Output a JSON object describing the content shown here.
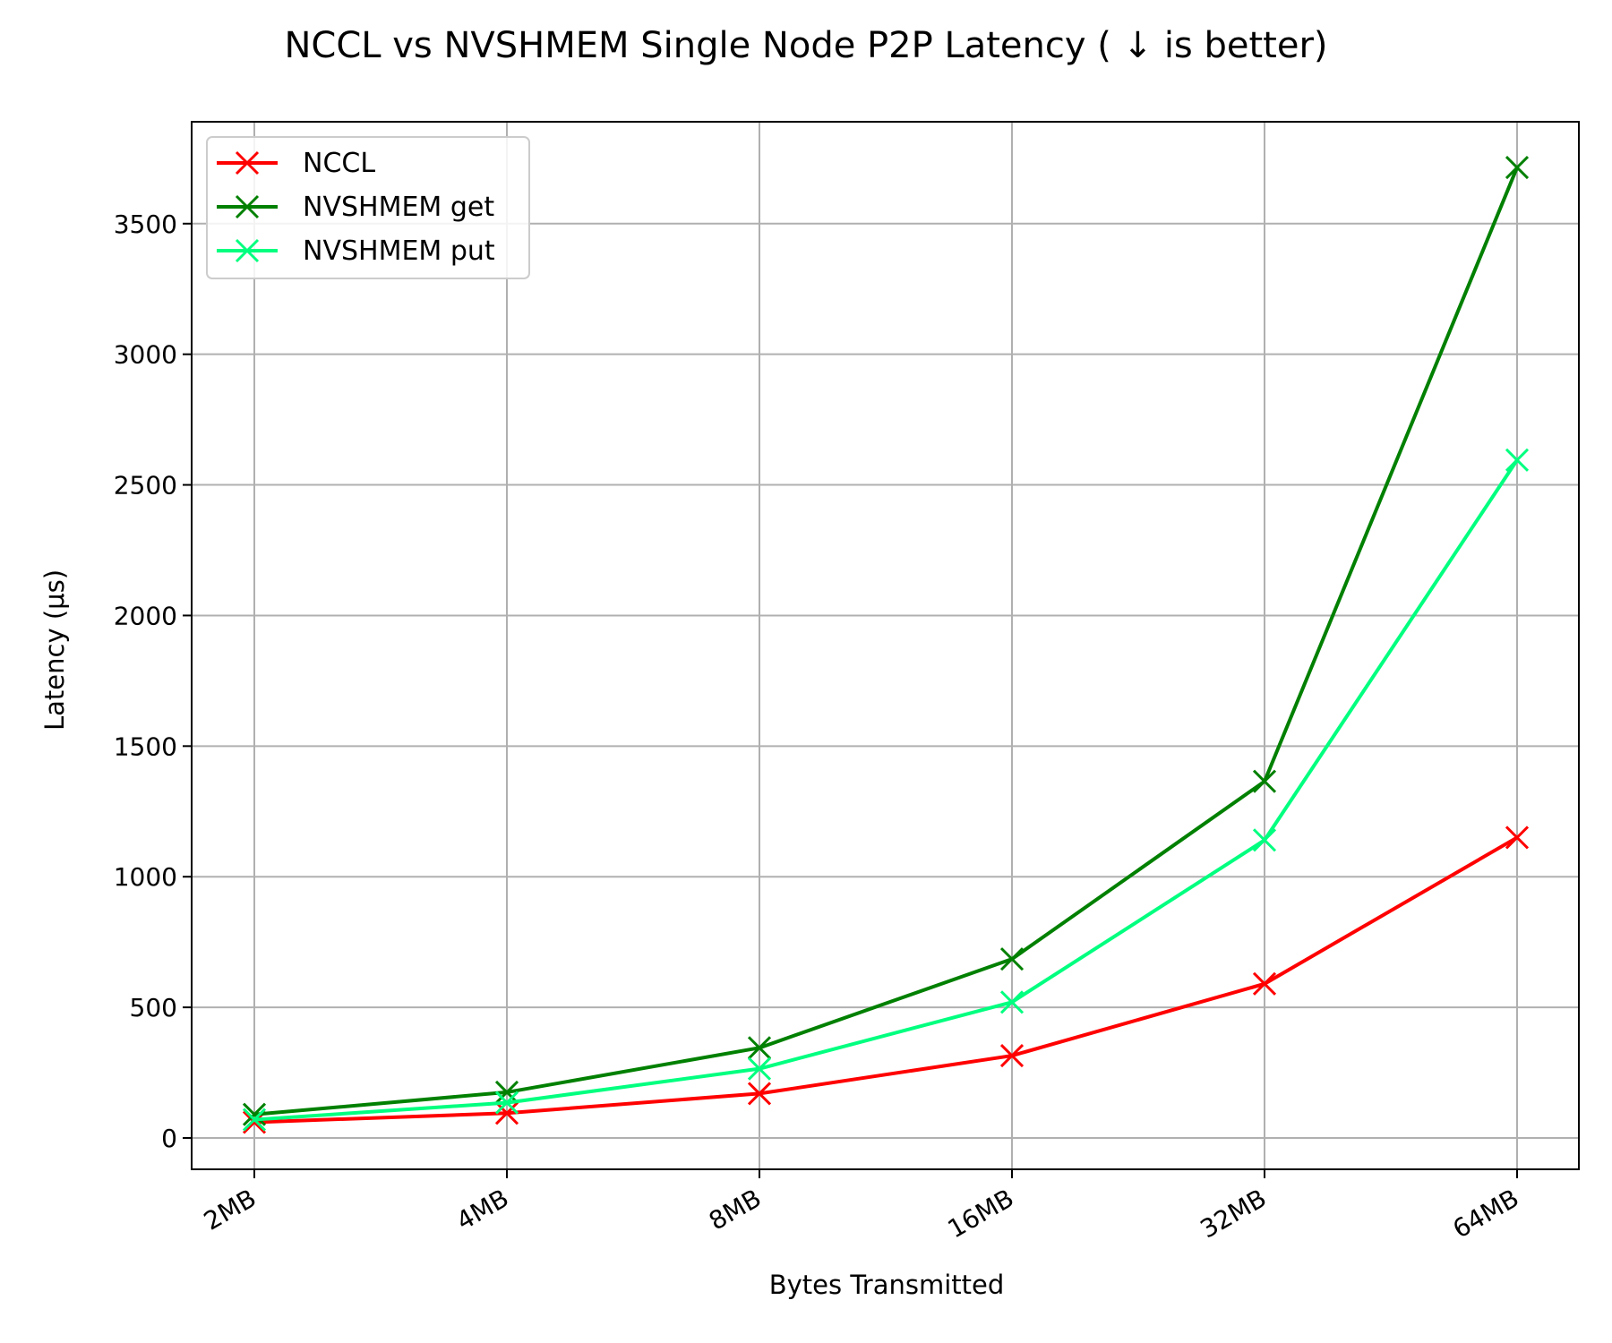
{
  "chart_data": {
    "type": "line",
    "title": "NCCL vs NVSHMEM Single Node P2P Latency ( ↓  is better)",
    "xlabel": "Bytes Transmitted",
    "ylabel": "Latency (μs)",
    "categories": [
      "2MB",
      "4MB",
      "8MB",
      "16MB",
      "32MB",
      "64MB"
    ],
    "ylim": [
      -120,
      3890
    ],
    "yticks": [
      0,
      500,
      1000,
      1500,
      2000,
      2500,
      3000,
      3500
    ],
    "grid": true,
    "legend_position": "top-left",
    "marker": "x",
    "series": [
      {
        "name": "NCCL",
        "color": "#ff0000",
        "values": [
          60,
          95,
          170,
          315,
          590,
          1150
        ]
      },
      {
        "name": "NVSHMEM get",
        "color": "#008000",
        "values": [
          90,
          175,
          345,
          685,
          1365,
          3715
        ]
      },
      {
        "name": "NVSHMEM put",
        "color": "#00ff7f",
        "values": [
          70,
          135,
          265,
          520,
          1140,
          2595
        ]
      }
    ]
  }
}
